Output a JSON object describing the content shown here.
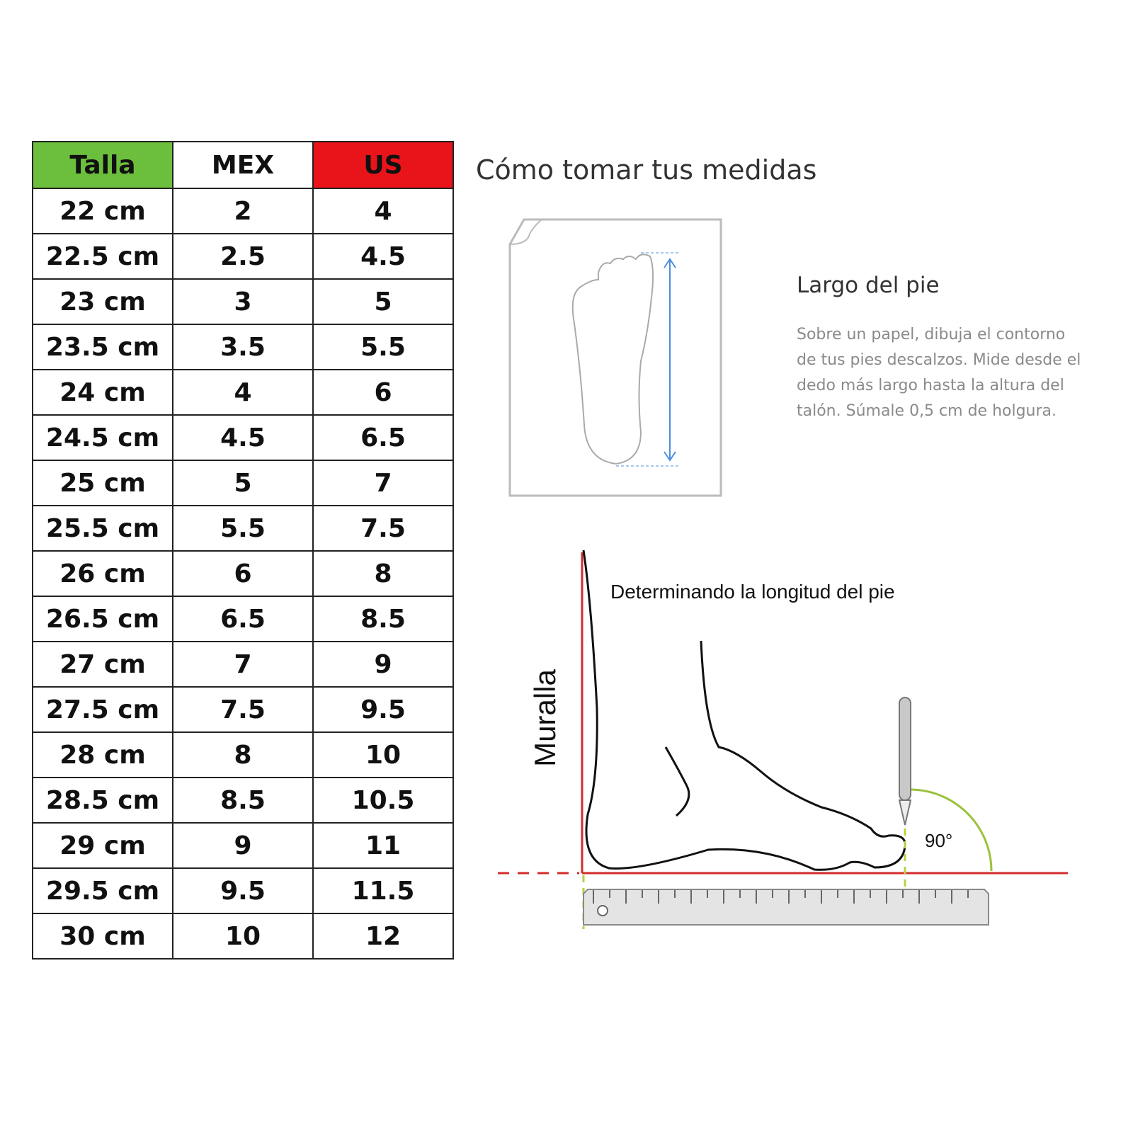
{
  "table": {
    "headers": [
      "Talla",
      "MEX",
      "US"
    ],
    "header_colors": [
      "#6cbf3c",
      "#ffffff",
      "#e8141a"
    ],
    "rows": [
      [
        "22 cm",
        "2",
        "4"
      ],
      [
        "22.5 cm",
        "2.5",
        "4.5"
      ],
      [
        "23 cm",
        "3",
        "5"
      ],
      [
        "23.5 cm",
        "3.5",
        "5.5"
      ],
      [
        "24 cm",
        "4",
        "6"
      ],
      [
        "24.5 cm",
        "4.5",
        "6.5"
      ],
      [
        "25 cm",
        "5",
        "7"
      ],
      [
        "25.5 cm",
        "5.5",
        "7.5"
      ],
      [
        "26 cm",
        "6",
        "8"
      ],
      [
        "26.5 cm",
        "6.5",
        "8.5"
      ],
      [
        "27 cm",
        "7",
        "9"
      ],
      [
        "27.5 cm",
        "7.5",
        "9.5"
      ],
      [
        "28 cm",
        "8",
        "10"
      ],
      [
        "28.5 cm",
        "8.5",
        "10.5"
      ],
      [
        "29 cm",
        "9",
        "11"
      ],
      [
        "29.5 cm",
        "9.5",
        "11.5"
      ],
      [
        "30 cm",
        "10",
        "12"
      ]
    ]
  },
  "guide": {
    "title": "Cómo tomar tus medidas",
    "subtitle": "Largo del pie",
    "instructions": "Sobre un papel, dibuja el contorno de tus pies descalzos. Mide desde el dedo más largo hasta la altura del talón. Súmale 0,5 cm de holgura."
  },
  "diagram": {
    "caption": "Determinando la longitud del pie",
    "wall_label": "Muralla",
    "angle_label": "90°"
  }
}
